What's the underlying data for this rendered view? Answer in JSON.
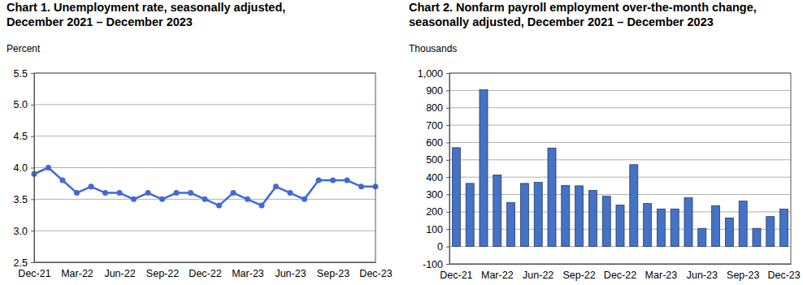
{
  "chart_data": [
    {
      "type": "line",
      "title": "Chart 1. Unemployment rate, seasonally adjusted,\nDecember 2021 – December 2023",
      "y_label": "Percent",
      "categories": [
        "Dec-21",
        null,
        null,
        "Mar-22",
        null,
        null,
        "Jun-22",
        null,
        null,
        "Sep-22",
        null,
        null,
        "Dec-22",
        null,
        null,
        "Mar-23",
        null,
        null,
        "Jun-23",
        null,
        null,
        "Sep-23",
        null,
        null,
        "Dec-23"
      ],
      "values": [
        3.9,
        4.0,
        3.8,
        3.6,
        3.7,
        3.6,
        3.6,
        3.5,
        3.6,
        3.5,
        3.6,
        3.6,
        3.5,
        3.4,
        3.6,
        3.5,
        3.4,
        3.7,
        3.6,
        3.5,
        3.8,
        3.8,
        3.8,
        3.7,
        3.7
      ],
      "color": "#4169d8",
      "marker": "circle",
      "ylim": [
        2.5,
        5.5
      ],
      "yticks": [
        2.5,
        {
          "value": 3,
          "label": "3.0"
        },
        3.5,
        {
          "value": 4,
          "label": "4.0"
        },
        4.5,
        {
          "value": 5,
          "label": "5.0"
        },
        5.5
      ],
      "grid": true
    },
    {
      "type": "bar",
      "title": "Chart 2. Nonfarm payroll employment over-the-month change,\nseasonally adjusted, December 2021 – December 2023",
      "y_label": "Thousands",
      "categories": [
        "Dec-21",
        null,
        null,
        "Mar-22",
        null,
        null,
        "Jun-22",
        null,
        null,
        "Sep-22",
        null,
        null,
        "Dec-22",
        null,
        null,
        "Mar-23",
        null,
        null,
        "Jun-23",
        null,
        null,
        "Sep-23",
        null,
        null,
        "Dec-23"
      ],
      "values": [
        570,
        364,
        904,
        413,
        253,
        364,
        370,
        568,
        352,
        350,
        324,
        290,
        239,
        472,
        248,
        217,
        217,
        281,
        105,
        236,
        165,
        262,
        105,
        173,
        216
      ],
      "color": "#4472c4",
      "ylim": [
        -100,
        1000
      ],
      "yticks": [
        -100,
        0,
        100,
        200,
        300,
        400,
        500,
        600,
        700,
        800,
        900,
        {
          "value": 1000,
          "label": "1,000"
        }
      ],
      "grid": true
    }
  ]
}
